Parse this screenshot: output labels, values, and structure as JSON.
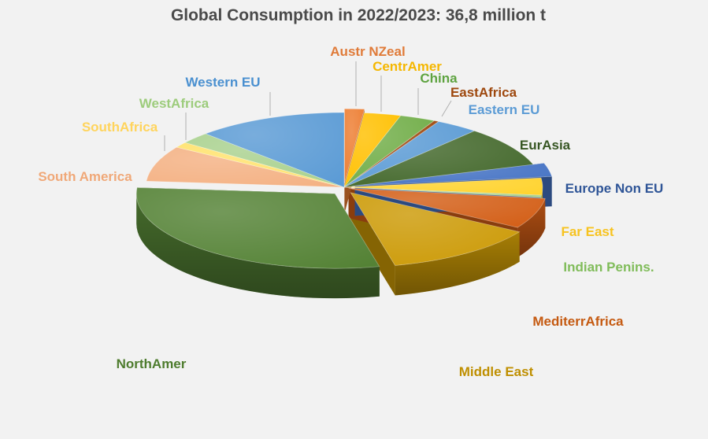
{
  "chart_data": {
    "type": "pie",
    "title": "Global Consumption in 2022/2023: 36,8 million t",
    "slices": [
      {
        "label": "Austr NZeal",
        "value": 1.6,
        "color": "#ed7d31",
        "text_color": "#e07b39"
      },
      {
        "label": "CentrAmer",
        "value": 3.0,
        "color": "#ffc000",
        "text_color": "#f5b700"
      },
      {
        "label": "China",
        "value": 2.9,
        "color": "#70ad47",
        "text_color": "#5ea340"
      },
      {
        "label": "EastAfrica",
        "value": 0.4,
        "color": "#9e480e",
        "text_color": "#9e480e"
      },
      {
        "label": "Eastern EU",
        "value": 3.5,
        "color": "#5b9bd5",
        "text_color": "#5b9bd5"
      },
      {
        "label": "EurAsia",
        "value": 8.7,
        "color": "#43682b",
        "text_color": "#375623"
      },
      {
        "label": "Europe Non EU",
        "value": 2.9,
        "color": "#4472c4",
        "text_color": "#2f5597"
      },
      {
        "label": "Far East",
        "value": 3.7,
        "color": "#ffd32d",
        "text_color": "#f7c320"
      },
      {
        "label": "Indian Penins.",
        "value": 0.5,
        "color": "#a9d18e",
        "text_color": "#80bc5a"
      },
      {
        "label": "MediterrAfrica",
        "value": 6.6,
        "color": "#d35e16",
        "text_color": "#c55a11"
      },
      {
        "label": "Middle East",
        "value": 12.6,
        "color": "#cc9a06",
        "text_color": "#bf8f00"
      },
      {
        "label": "NorthAmer",
        "value": 29.9,
        "color": "#548235",
        "text_color": "#4e7c2e"
      },
      {
        "label": "South America",
        "value": 7.7,
        "color": "#f4b183",
        "text_color": "#f0a878"
      },
      {
        "label": "SouthAfrica",
        "value": 1.2,
        "color": "#ffe26b",
        "text_color": "#ffd45c"
      },
      {
        "label": "WestAfrica",
        "value": 2.5,
        "color": "#a9d18e",
        "text_color": "#9dcc7c"
      },
      {
        "label": "Western EU",
        "value": 12.3,
        "color": "#5b9bd5",
        "text_color": "#4a90d0"
      }
    ]
  }
}
